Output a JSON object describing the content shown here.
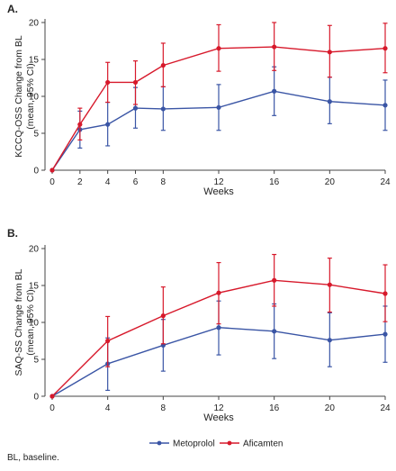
{
  "chart_data": [
    {
      "type": "line",
      "panel_label": "A.",
      "ylabel_lines": [
        "KCCQ-OSS Change from BL",
        "(mean, 95% CI)"
      ],
      "xlabel": "Weeks",
      "x_ticks": [
        0,
        2,
        4,
        6,
        8,
        12,
        16,
        20,
        24
      ],
      "y_ticks": [
        0,
        5,
        10,
        15,
        20
      ],
      "ylim": [
        0,
        20
      ],
      "grid": false,
      "series": [
        {
          "name": "Metoprolol",
          "color": "#3a55a5",
          "x": [
            0,
            2,
            4,
            6,
            8,
            12,
            16,
            20,
            24
          ],
          "y": [
            0,
            5.5,
            6.2,
            8.4,
            8.3,
            8.5,
            10.7,
            9.3,
            8.8
          ],
          "ci_low": [
            0,
            3.0,
            3.3,
            5.7,
            5.4,
            5.4,
            7.4,
            6.3,
            5.4
          ],
          "ci_high": [
            0,
            8.0,
            9.2,
            11.2,
            11.3,
            11.6,
            14.0,
            12.6,
            12.2
          ]
        },
        {
          "name": "Aficamten",
          "color": "#d7192b",
          "x": [
            0,
            2,
            4,
            6,
            8,
            12,
            16,
            20,
            24
          ],
          "y": [
            0,
            6.2,
            11.9,
            11.9,
            14.2,
            16.5,
            16.7,
            16.0,
            16.5
          ],
          "ci_low": [
            0,
            4.1,
            9.2,
            8.9,
            11.3,
            13.4,
            13.5,
            12.6,
            13.2
          ],
          "ci_high": [
            0,
            8.4,
            14.6,
            14.8,
            17.2,
            19.7,
            20.0,
            19.6,
            19.9
          ]
        }
      ]
    },
    {
      "type": "line",
      "panel_label": "B.",
      "ylabel_lines": [
        "SAQ-SS Change from BL",
        "(mean, 95% CI)"
      ],
      "xlabel": "Weeks",
      "x_ticks": [
        0,
        4,
        8,
        12,
        16,
        20,
        24
      ],
      "y_ticks": [
        0,
        5,
        10,
        15,
        20
      ],
      "ylim": [
        0,
        20
      ],
      "grid": false,
      "series": [
        {
          "name": "Metoprolol",
          "color": "#3a55a5",
          "x": [
            0,
            4,
            8,
            12,
            16,
            20,
            24
          ],
          "y": [
            0,
            4.4,
            6.9,
            9.3,
            8.8,
            7.6,
            8.4
          ],
          "ci_low": [
            0,
            0.8,
            3.4,
            5.6,
            5.1,
            4.0,
            4.6
          ],
          "ci_high": [
            0,
            7.9,
            10.4,
            12.9,
            12.5,
            11.3,
            12.2
          ]
        },
        {
          "name": "Aficamten",
          "color": "#d7192b",
          "x": [
            0,
            4,
            8,
            12,
            16,
            20,
            24
          ],
          "y": [
            0,
            7.5,
            10.9,
            14.0,
            15.7,
            15.1,
            13.9
          ],
          "ci_low": [
            0,
            4.0,
            7.1,
            9.8,
            12.2,
            11.4,
            10.1
          ],
          "ci_high": [
            0,
            10.8,
            14.8,
            18.1,
            19.2,
            18.7,
            17.8
          ]
        }
      ]
    }
  ],
  "legend": {
    "placement": "bottom-center",
    "items": [
      {
        "label": "Metoprolol",
        "color": "#3a55a5"
      },
      {
        "label": "Aficamten",
        "color": "#d7192b"
      }
    ]
  },
  "footnote": "BL, baseline."
}
